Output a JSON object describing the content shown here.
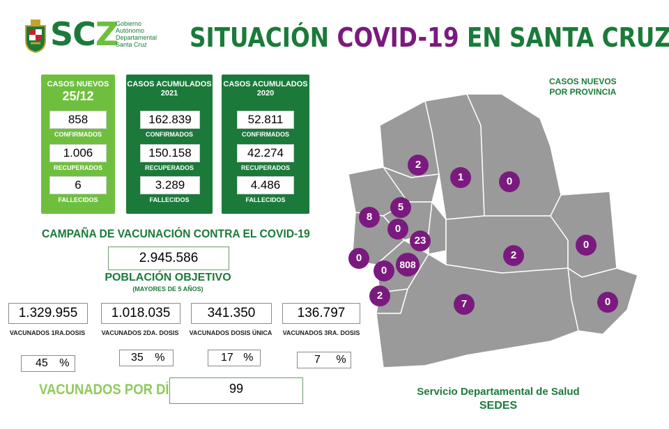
{
  "header": {
    "logo_text": "SCZ",
    "gov_lines": [
      "Gobierno",
      "Autónomo",
      "Departamental",
      "Santa Cruz"
    ],
    "title_pre": "SITUACIÓN ",
    "title_hl": "COVID-19",
    "title_post": " EN SANTA CRUZ"
  },
  "cards": {
    "new": {
      "title": "CASOS NUEVOS",
      "date": "25/12",
      "confirmados": "858",
      "confirmados_label": "CONFIRMADOS",
      "recuperados": "1.006",
      "recuperados_label": "RECUPERADOS",
      "fallecidos": "6",
      "fallecidos_label": "FALLECIDOS"
    },
    "acc2021": {
      "title": "CASOS ACUMULADOS",
      "year": "2021",
      "confirmados": "162.839",
      "confirmados_label": "CONFIRMADOS",
      "recuperados": "150.158",
      "recuperados_label": "RECUPERADOS",
      "fallecidos": "3.289",
      "fallecidos_label": "FALLECIDOS"
    },
    "acc2020": {
      "title": "CASOS ACUMULADOS",
      "year": "2020",
      "confirmados": "52.811",
      "confirmados_label": "CONFIRMADOS",
      "recuperados": "42.274",
      "recuperados_label": "RECUPERADOS",
      "fallecidos": "4.486",
      "fallecidos_label": "FALLECIDOS"
    }
  },
  "campaign": {
    "title": "CAMPAÑA DE VACUNACIÓN CONTRA EL COVID-19",
    "population": "2.945.586",
    "population_label": "POBLACIÓN OBJETIVO",
    "population_note": "(MAYORES DE 5 AÑOS)",
    "doses": [
      {
        "value": "1.329.955",
        "label": "VACUNADOS 1RA.DOSIS",
        "pct": "45",
        "pct_sign": "%"
      },
      {
        "value": "1.018.035",
        "label": "VACUNADOS 2DA. DOSIS",
        "pct": "35",
        "pct_sign": "%"
      },
      {
        "value": "341.350",
        "label": "VACUNADOS DOSIS ÚNICA",
        "pct": "17",
        "pct_sign": "%"
      },
      {
        "value": "136.797",
        "label": "VACUNADOS 3RA. DOSIS",
        "pct": "7",
        "pct_sign": "%"
      }
    ],
    "per_day_label": "VACUNADOS POR DÍA",
    "per_day": "99"
  },
  "map": {
    "legend_line1": "CASOS NUEVOS",
    "legend_line2": "POR PROVINCIA",
    "bubbles": [
      "2",
      "1",
      "0",
      "8",
      "5",
      "0",
      "23",
      "0",
      "0",
      "808",
      "2",
      "0",
      "2",
      "7",
      "0"
    ]
  },
  "footer": {
    "line1": "Servicio Departamental de Salud",
    "line2": "SEDES"
  },
  "colors": {
    "green_light": "#6fbf3f",
    "green_dark": "#1b7a3a",
    "purple": "#7a1a7e",
    "map_gray": "#9a9a9a"
  }
}
